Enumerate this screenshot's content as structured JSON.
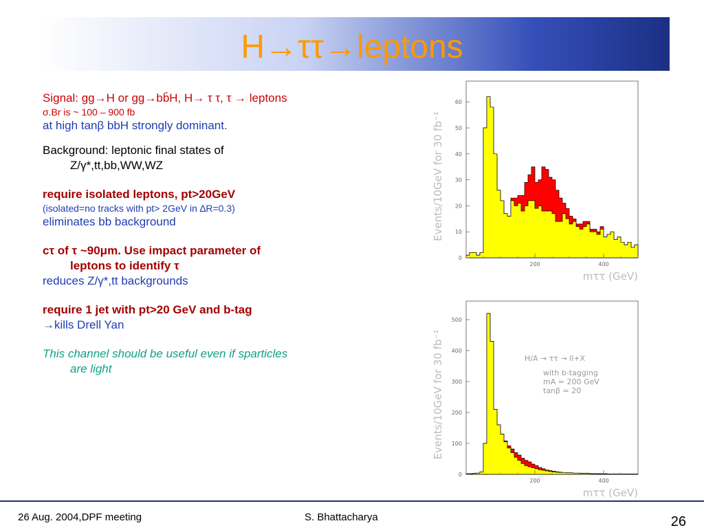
{
  "title": {
    "text": "H→ττ→leptons"
  },
  "body": {
    "signal_line1": "Signal: gg→H or gg→bb̄H, H→ τ τ, τ → leptons",
    "signal_line2": "σ.Br is ~ 100 – 900 fb",
    "signal_line3": "at high tanβ bbH strongly dominant.",
    "background_line1": "Background: leptonic final states of",
    "background_line2": "Z/γ*,tt,bb,WW,WZ",
    "isolated_line1": "require isolated leptons, pt>20GeV",
    "isolated_line2": "(isolated=no tracks with pt> 2GeV in ∆R=0.3)",
    "isolated_line3": "eliminates bb background",
    "ctau_line1": "cτ of τ ~90μm. Use impact parameter of",
    "ctau_line2": "leptons to identify τ",
    "ctau_line3": "reduces Z/γ*,tt backgrounds",
    "jet_line1": "require 1 jet with pt>20 GeV and b-tag",
    "jet_line2": "→kills Drell Yan",
    "sparticles_line1": "This channel should be useful even if sparticles",
    "sparticles_line2": "are light"
  },
  "footer": {
    "left": "26 Aug. 2004,DPF meeting",
    "center": "S. Bhattacharya",
    "page": "26"
  },
  "colors": {
    "signal_fill": "#ff0000",
    "background_fill": "#ffff00",
    "title": "#ff9900"
  },
  "chart_data": [
    {
      "type": "bar",
      "title": "",
      "xlabel": "mττ (GeV)",
      "ylabel": "Events/10GeV for 30 fb⁻¹",
      "xlim": [
        0,
        500
      ],
      "ylim": [
        0,
        68
      ],
      "x_ticks": [
        200,
        400
      ],
      "y_ticks": [
        0,
        10,
        20,
        30,
        40,
        50,
        60
      ],
      "bin_width": 10,
      "x_start": 0,
      "series": [
        {
          "name": "",
          "values": [
            1,
            2,
            2,
            1,
            2,
            50,
            62,
            58,
            40,
            26,
            22,
            17,
            16,
            22,
            20,
            21,
            18,
            20,
            22,
            22,
            19,
            20,
            18,
            18,
            18,
            17,
            14,
            14,
            17,
            15,
            13,
            14,
            12,
            11,
            12,
            13,
            10,
            10,
            9,
            11,
            8,
            9,
            10,
            7,
            8,
            6,
            5,
            6,
            4,
            5
          ]
        },
        {
          "name": "",
          "values": [
            1,
            2,
            2,
            1,
            2,
            50,
            62,
            58,
            40,
            26,
            22,
            17,
            16,
            23,
            23,
            24,
            24,
            29,
            32,
            35,
            29,
            30,
            35,
            34,
            31,
            30,
            26,
            23,
            21,
            19,
            16,
            15,
            13,
            13,
            14,
            14,
            11,
            11,
            10,
            12,
            8,
            9,
            10,
            7,
            8,
            6,
            5,
            6,
            4,
            5
          ]
        }
      ]
    },
    {
      "type": "bar",
      "title": "",
      "xlabel": "mττ (GeV)",
      "ylabel": "Events/10GeV for 30 fb⁻¹",
      "xlim": [
        0,
        500
      ],
      "ylim": [
        0,
        560
      ],
      "x_ticks": [
        200,
        400
      ],
      "y_ticks": [
        0,
        100,
        200,
        300,
        400,
        500
      ],
      "bin_width": 10,
      "x_start": 0,
      "annotation_lines": [
        "H/A → ττ → ll+X",
        "with b-tagging",
        "mA = 200 GeV",
        "tanβ = 20"
      ],
      "series": [
        {
          "name": "",
          "values": [
            2,
            2,
            3,
            4,
            8,
            100,
            520,
            430,
            210,
            160,
            130,
            105,
            85,
            70,
            55,
            45,
            35,
            28,
            24,
            21,
            18,
            15,
            13,
            11,
            9,
            8,
            7,
            6,
            6,
            5,
            5,
            4,
            4,
            3,
            3,
            3,
            2,
            2,
            2,
            2,
            2,
            1,
            1,
            1,
            1,
            1,
            1,
            1,
            1,
            1
          ]
        },
        {
          "name": "",
          "values": [
            2,
            2,
            3,
            4,
            8,
            100,
            520,
            430,
            210,
            160,
            130,
            108,
            92,
            82,
            70,
            62,
            52,
            45,
            40,
            33,
            28,
            22,
            18,
            14,
            12,
            10,
            8,
            7,
            6,
            5,
            5,
            4,
            4,
            3,
            3,
            3,
            2,
            2,
            2,
            2,
            2,
            1,
            1,
            1,
            1,
            1,
            1,
            1,
            1,
            1
          ]
        }
      ]
    }
  ]
}
